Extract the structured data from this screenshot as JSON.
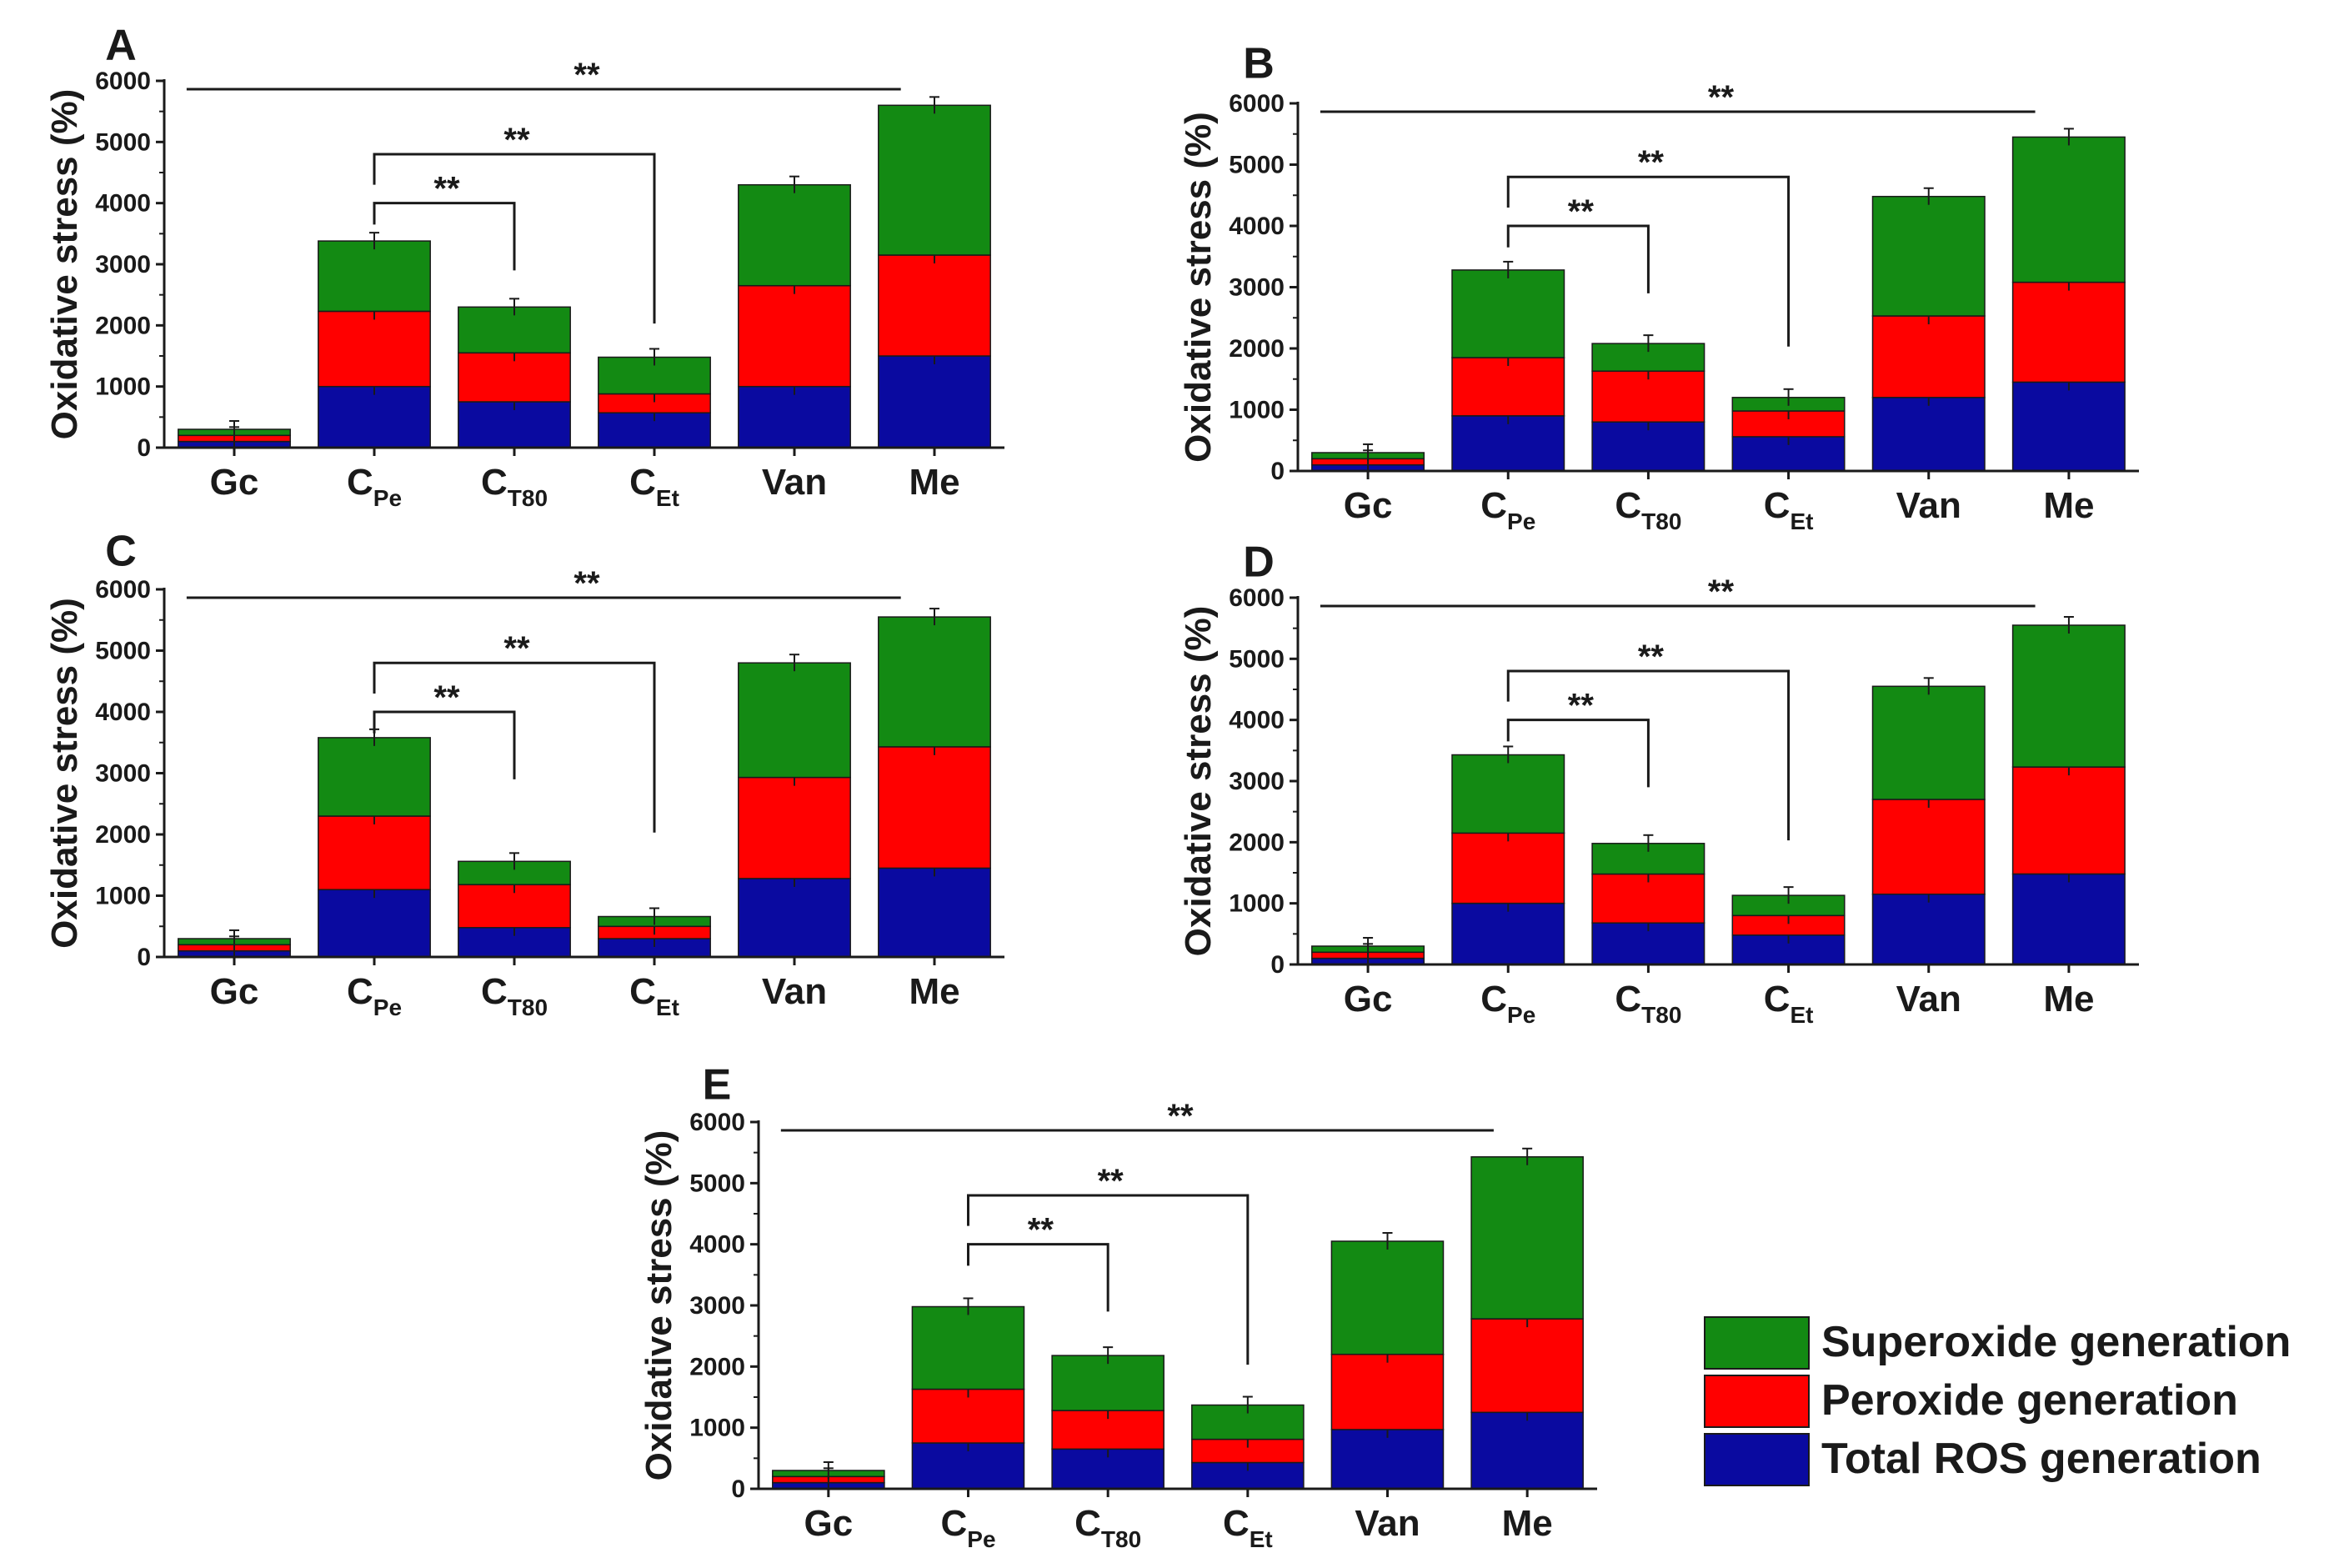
{
  "colors": {
    "total_ros": "#0a0aa0",
    "peroxide": "#ff0000",
    "superoxide": "#138a13",
    "axis": "#1a1a1a"
  },
  "legend": {
    "items": [
      {
        "label": "Superoxide generation",
        "color": "#138a13"
      },
      {
        "label": "Peroxide generation",
        "color": "#ff0000"
      },
      {
        "label": "Total ROS generation",
        "color": "#0a0aa0"
      }
    ]
  },
  "chart_data": [
    {
      "panel": "A",
      "type": "bar",
      "stacked": true,
      "ylabel": "Oxidative stress (%)",
      "ylim": [
        0,
        6000
      ],
      "yticks": [
        "0",
        "1000",
        "2000",
        "3000",
        "4000",
        "5000",
        "6000"
      ],
      "categories": [
        {
          "main": "Gc",
          "sub": ""
        },
        {
          "main": "C",
          "sub": "Pe"
        },
        {
          "main": "C",
          "sub": "T80"
        },
        {
          "main": "C",
          "sub": "Et"
        },
        {
          "main": "Van",
          "sub": ""
        },
        {
          "main": "Me",
          "sub": ""
        }
      ],
      "series": [
        {
          "name": "Total ROS generation",
          "values": [
            100,
            1000,
            750,
            570,
            1000,
            1500
          ]
        },
        {
          "name": "Peroxide generation",
          "values": [
            100,
            1230,
            800,
            310,
            1650,
            1650
          ]
        },
        {
          "name": "Superoxide generation",
          "values": [
            100,
            1150,
            750,
            600,
            1650,
            2450
          ]
        }
      ],
      "significance": [
        {
          "from": 0,
          "to": 5,
          "label": "**"
        },
        {
          "from": 1,
          "to": 3,
          "label": "**"
        },
        {
          "from": 1,
          "to": 2,
          "label": "**"
        }
      ]
    },
    {
      "panel": "B",
      "type": "bar",
      "stacked": true,
      "ylabel": "Oxidative stress (%)",
      "ylim": [
        0,
        6000
      ],
      "yticks": [
        "0",
        "1000",
        "2000",
        "3000",
        "4000",
        "5000",
        "6000"
      ],
      "categories": [
        {
          "main": "Gc",
          "sub": ""
        },
        {
          "main": "C",
          "sub": "Pe"
        },
        {
          "main": "C",
          "sub": "T80"
        },
        {
          "main": "C",
          "sub": "Et"
        },
        {
          "main": "Van",
          "sub": ""
        },
        {
          "main": "Me",
          "sub": ""
        }
      ],
      "series": [
        {
          "name": "Total ROS generation",
          "values": [
            100,
            900,
            800,
            560,
            1200,
            1450
          ]
        },
        {
          "name": "Peroxide generation",
          "values": [
            100,
            950,
            830,
            420,
            1330,
            1630
          ]
        },
        {
          "name": "Superoxide generation",
          "values": [
            100,
            1430,
            450,
            220,
            1950,
            2370
          ]
        }
      ],
      "significance": [
        {
          "from": 0,
          "to": 5,
          "label": "**"
        },
        {
          "from": 1,
          "to": 3,
          "label": "**"
        },
        {
          "from": 1,
          "to": 2,
          "label": "**"
        }
      ]
    },
    {
      "panel": "C",
      "type": "bar",
      "stacked": true,
      "ylabel": "Oxidative stress (%)",
      "ylim": [
        0,
        6000
      ],
      "yticks": [
        "0",
        "1000",
        "2000",
        "3000",
        "4000",
        "5000",
        "6000"
      ],
      "categories": [
        {
          "main": "Gc",
          "sub": ""
        },
        {
          "main": "C",
          "sub": "Pe"
        },
        {
          "main": "C",
          "sub": "T80"
        },
        {
          "main": "C",
          "sub": "Et"
        },
        {
          "main": "Van",
          "sub": ""
        },
        {
          "main": "Me",
          "sub": ""
        }
      ],
      "series": [
        {
          "name": "Total ROS generation",
          "values": [
            100,
            1100,
            480,
            300,
            1280,
            1450
          ]
        },
        {
          "name": "Peroxide generation",
          "values": [
            100,
            1200,
            700,
            200,
            1650,
            1980
          ]
        },
        {
          "name": "Superoxide generation",
          "values": [
            100,
            1280,
            380,
            160,
            1870,
            2120
          ]
        }
      ],
      "significance": [
        {
          "from": 0,
          "to": 5,
          "label": "**"
        },
        {
          "from": 1,
          "to": 3,
          "label": "**"
        },
        {
          "from": 1,
          "to": 2,
          "label": "**"
        }
      ]
    },
    {
      "panel": "D",
      "type": "bar",
      "stacked": true,
      "ylabel": "Oxidative stress (%)",
      "ylim": [
        0,
        6000
      ],
      "yticks": [
        "0",
        "1000",
        "2000",
        "3000",
        "4000",
        "5000",
        "6000"
      ],
      "categories": [
        {
          "main": "Gc",
          "sub": ""
        },
        {
          "main": "C",
          "sub": "Pe"
        },
        {
          "main": "C",
          "sub": "T80"
        },
        {
          "main": "C",
          "sub": "Et"
        },
        {
          "main": "Van",
          "sub": ""
        },
        {
          "main": "Me",
          "sub": ""
        }
      ],
      "series": [
        {
          "name": "Total ROS generation",
          "values": [
            100,
            1000,
            680,
            480,
            1150,
            1480
          ]
        },
        {
          "name": "Peroxide generation",
          "values": [
            100,
            1150,
            800,
            320,
            1550,
            1750
          ]
        },
        {
          "name": "Superoxide generation",
          "values": [
            100,
            1280,
            500,
            330,
            1850,
            2320
          ]
        }
      ],
      "significance": [
        {
          "from": 0,
          "to": 5,
          "label": "**"
        },
        {
          "from": 1,
          "to": 3,
          "label": "**"
        },
        {
          "from": 1,
          "to": 2,
          "label": "**"
        }
      ]
    },
    {
      "panel": "E",
      "type": "bar",
      "stacked": true,
      "ylabel": "Oxidative stress (%)",
      "ylim": [
        0,
        6000
      ],
      "yticks": [
        "0",
        "1000",
        "2000",
        "3000",
        "4000",
        "5000",
        "6000"
      ],
      "categories": [
        {
          "main": "Gc",
          "sub": ""
        },
        {
          "main": "C",
          "sub": "Pe"
        },
        {
          "main": "C",
          "sub": "T80"
        },
        {
          "main": "C",
          "sub": "Et"
        },
        {
          "main": "Van",
          "sub": ""
        },
        {
          "main": "Me",
          "sub": ""
        }
      ],
      "series": [
        {
          "name": "Total ROS generation",
          "values": [
            100,
            750,
            650,
            430,
            970,
            1250
          ]
        },
        {
          "name": "Peroxide generation",
          "values": [
            100,
            880,
            630,
            380,
            1230,
            1530
          ]
        },
        {
          "name": "Superoxide generation",
          "values": [
            100,
            1350,
            900,
            560,
            1850,
            2650
          ]
        }
      ],
      "significance": [
        {
          "from": 0,
          "to": 5,
          "label": "**"
        },
        {
          "from": 1,
          "to": 3,
          "label": "**"
        },
        {
          "from": 1,
          "to": 2,
          "label": "**"
        }
      ]
    }
  ]
}
